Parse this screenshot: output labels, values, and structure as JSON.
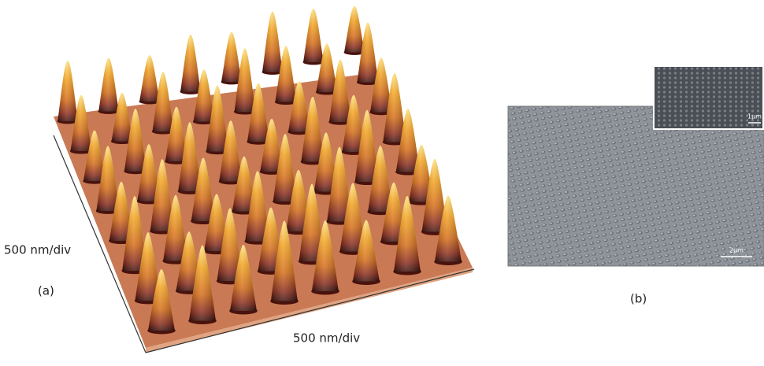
{
  "panel_a": {
    "label": "(a)",
    "y_axis_label": "500 nm/div",
    "x_axis_label": "500 nm/div"
  },
  "panel_b": {
    "label": "(b)",
    "scale_bar": "2μm",
    "inset_scale_bar": "1μm"
  }
}
